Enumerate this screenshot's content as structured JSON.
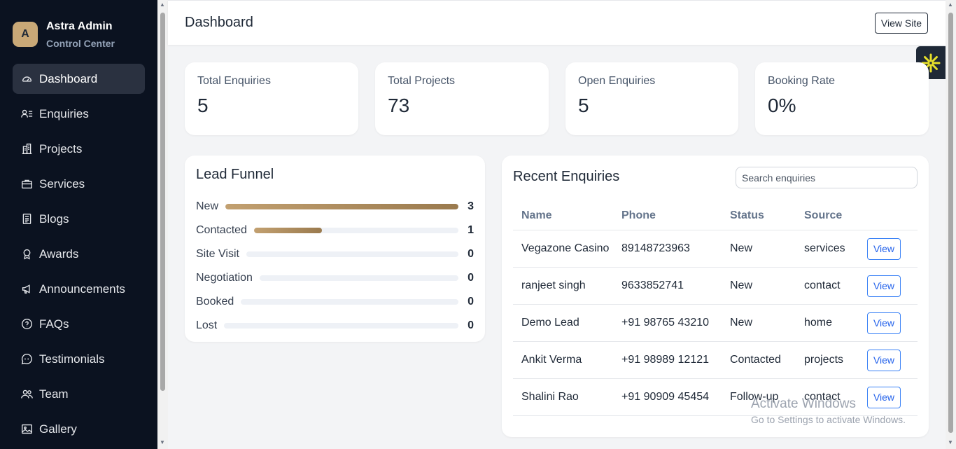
{
  "brand": {
    "initial": "A",
    "name": "Astra Admin",
    "subtitle": "Control Center"
  },
  "sidebar": {
    "items": [
      {
        "label": "Dashboard",
        "icon": "gauge-icon",
        "active": true
      },
      {
        "label": "Enquiries",
        "icon": "user-list-icon"
      },
      {
        "label": "Projects",
        "icon": "building-icon"
      },
      {
        "label": "Services",
        "icon": "briefcase-icon"
      },
      {
        "label": "Blogs",
        "icon": "document-icon"
      },
      {
        "label": "Awards",
        "icon": "award-icon"
      },
      {
        "label": "Announcements",
        "icon": "megaphone-icon"
      },
      {
        "label": "FAQs",
        "icon": "question-circle-icon"
      },
      {
        "label": "Testimonials",
        "icon": "chat-quote-icon"
      },
      {
        "label": "Team",
        "icon": "people-icon"
      },
      {
        "label": "Gallery",
        "icon": "image-icon"
      }
    ]
  },
  "header": {
    "title": "Dashboard",
    "view_site_label": "View Site"
  },
  "stats": [
    {
      "label": "Total Enquiries",
      "value": "5"
    },
    {
      "label": "Total Projects",
      "value": "73"
    },
    {
      "label": "Open Enquiries",
      "value": "5"
    },
    {
      "label": "Booking Rate",
      "value": "0%"
    }
  ],
  "funnel": {
    "title": "Lead Funnel",
    "max": 3,
    "stages": [
      {
        "label": "New",
        "count": 3
      },
      {
        "label": "Contacted",
        "count": 1
      },
      {
        "label": "Site Visit",
        "count": 0
      },
      {
        "label": "Negotiation",
        "count": 0
      },
      {
        "label": "Booked",
        "count": 0
      },
      {
        "label": "Lost",
        "count": 0
      }
    ],
    "fill_color": "#b08d5e"
  },
  "recent": {
    "title": "Recent Enquiries",
    "search_placeholder": "Search enquiries",
    "columns": [
      "Name",
      "Phone",
      "Status",
      "Source"
    ],
    "rows": [
      {
        "name": "Vegazone Casino",
        "phone": "89148723963",
        "status": "New",
        "source": "services",
        "action": "View"
      },
      {
        "name": "ranjeet singh",
        "phone": "9633852741",
        "status": "New",
        "source": "contact",
        "action": "View"
      },
      {
        "name": "Demo Lead",
        "phone": "+91 98765 43210",
        "status": "New",
        "source": "home",
        "action": "View"
      },
      {
        "name": "Ankit Verma",
        "phone": "+91 98989 12121",
        "status": "Contacted",
        "source": "projects",
        "action": "View"
      },
      {
        "name": "Shalini Rao",
        "phone": "+91 90909 45454",
        "status": "Follow-up",
        "source": "contact",
        "action": "View"
      }
    ]
  },
  "watermark": {
    "line1": "Activate Windows",
    "line2": "Go to Settings to activate Windows."
  },
  "colors": {
    "sidebar_bg": "#0b1220",
    "accent_gold": "#c9a877",
    "link_blue": "#2563eb"
  }
}
